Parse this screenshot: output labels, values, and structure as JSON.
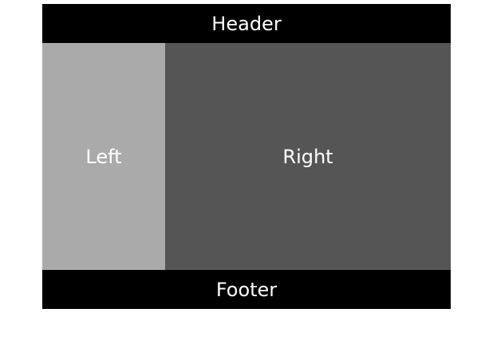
{
  "header": {
    "label": "Header"
  },
  "left": {
    "label": "Left"
  },
  "right": {
    "label": "Right"
  },
  "footer": {
    "label": "Footer"
  },
  "colors": {
    "header_bg": "#000000",
    "left_bg": "#aaaaaa",
    "right_bg": "#555555",
    "footer_bg": "#000000",
    "text": "#ffffff"
  }
}
